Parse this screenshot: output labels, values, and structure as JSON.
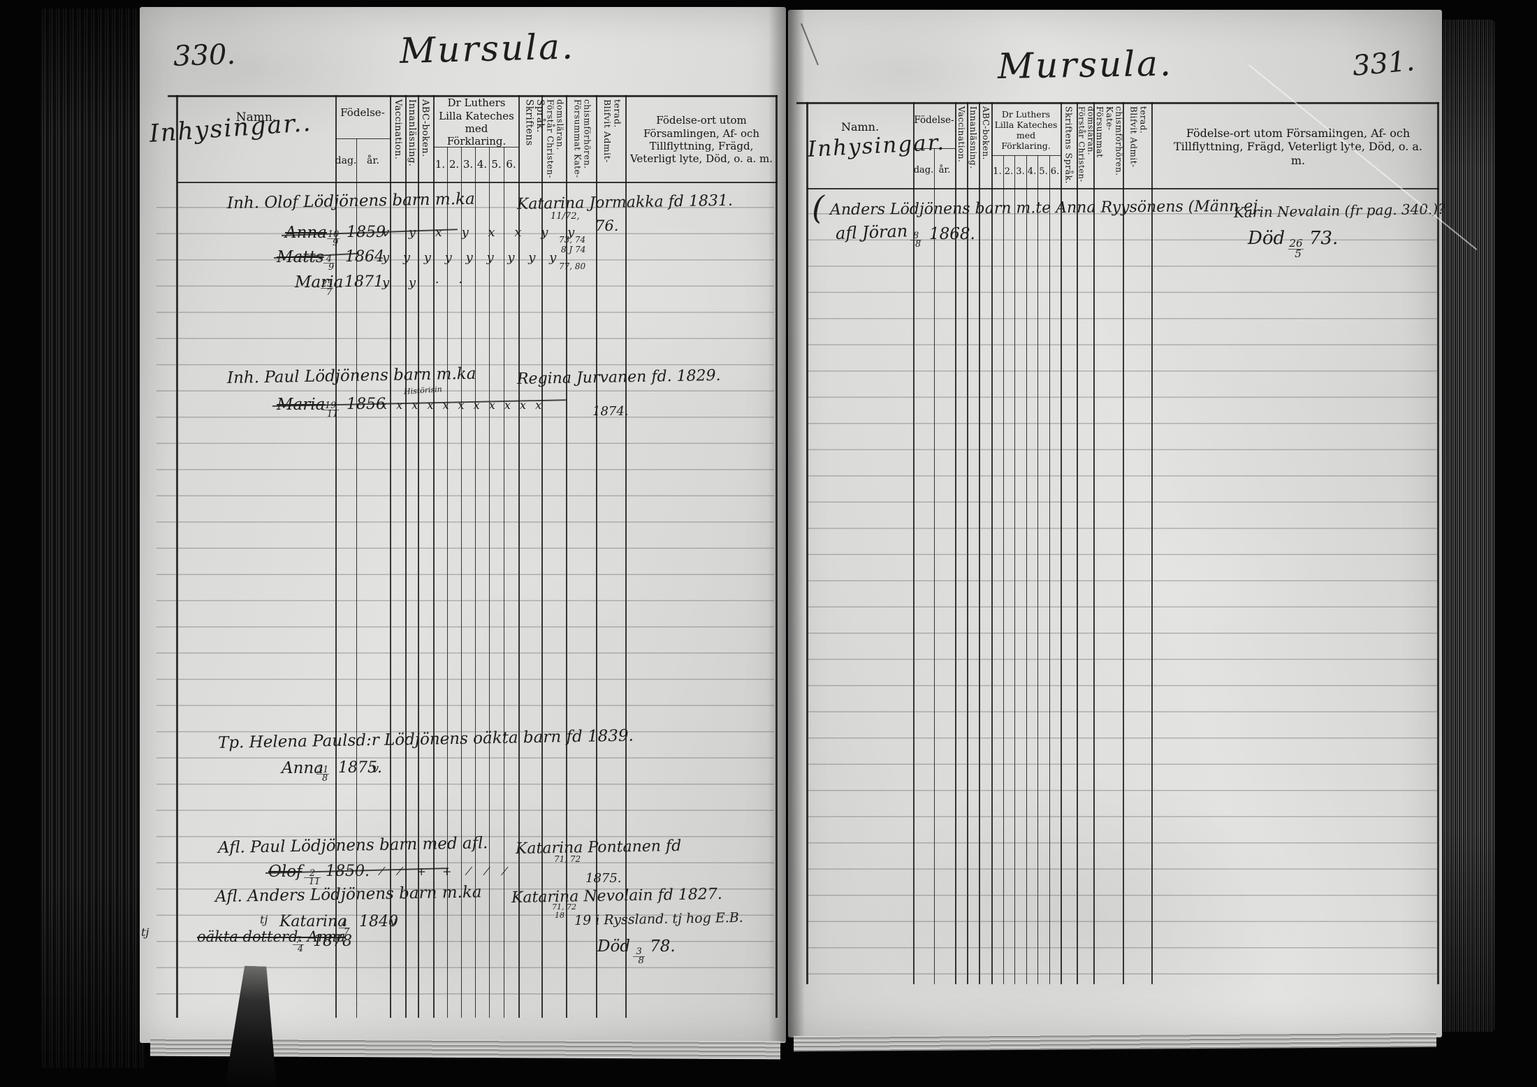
{
  "column_headers": {
    "name": "Namn.",
    "birth": "Födelse-",
    "birth_day": "dag.",
    "birth_year": "år.",
    "vaccination": "Vaccination.",
    "reading": "Innanläsning.",
    "abc_book": "ABC-boken.",
    "catechism": "Dr Luthers Lilla Kateches med Förklaring.",
    "catechism_cols": [
      "1.",
      "2.",
      "3.",
      "4.",
      "5.",
      "6."
    ],
    "scripture": "Skriftens Språk.",
    "understands": "Förstår Christen-domsläran.",
    "missed": "Försummat Kate-chismförhören.",
    "admitted": "Blifvit Admit-terad.",
    "remarks": "Födelse-ort utom Församlingen, Af- och Tillflyttning, Frägd, Veterligt lyte, Död, o. a. m."
  },
  "pages": {
    "left": {
      "page_number": "330.",
      "title": "Mursula.",
      "category": "Inhysingar..",
      "records": [
        {
          "intro": "Inh. Olof Lödjönens barn m.ka",
          "mother": "Katarina Jormakka fd 1831.",
          "note_top": "11/72,",
          "admitted": "76.",
          "rows": [
            {
              "name": "Anna",
              "day": "10/9",
              "year": "1859",
              "marks": "v y x y x x y y",
              "note1": "73, 74",
              "note2": "8 J 74"
            },
            {
              "name": "Matts",
              "day": "4/9",
              "year": "1864",
              "marks": "y y y y y y y y y",
              "note1": "77, 80"
            },
            {
              "name": "Maria",
              "day": "25/7",
              "year": "1871.",
              "marks": "y y · ·"
            }
          ]
        },
        {
          "intro": "Inh. Paul Lödjönens barn m.ka",
          "mother": "Regina Jurvanen fd. 1829.",
          "rows": [
            {
              "name": "Maria",
              "day": "19/11",
              "year": "1856",
              "marks": "x x x x x x x x x x x",
              "marks_note": "Histörisin",
              "note1": "1874."
            }
          ]
        },
        {
          "intro": "Tp. Helena Paulsd:r Lödjönens oäkta barn fd 1839.",
          "rows": [
            {
              "name": "Anna",
              "day": "31/8",
              "year": "1875.",
              "marks": "v"
            }
          ]
        },
        {
          "intro": "Afl. Paul Lödjönens barn med afl.",
          "mother": "Katarina Pontanen fd",
          "note_top": "71, 72",
          "note_bottom": "1875.",
          "rows": [
            {
              "name": "Olof",
              "day": "2/11",
              "year": "1850.",
              "marks": "⁄ ⁄ + + ⁄ ⁄ ⁄"
            }
          ]
        },
        {
          "intro": "Afl. Anders Lödjönens barn m.ka",
          "mother": "Katarina Nevolain fd 1827.",
          "note_top": "71, 72",
          "note_bottom": "18",
          "rows": [
            {
              "prefix": "tj",
              "name": "Katarina",
              "day": "4/7",
              "year": "1840",
              "marks": "v",
              "remark": "19 i Ryssland. tj hog E.B."
            },
            {
              "prefix": "tj",
              "name": "oäkta dotterd. Anna",
              "day": "7/4",
              "year": "1878",
              "remark_pre": "Död",
              "remark_frac": "3/8",
              "remark_post": "78."
            }
          ]
        }
      ]
    },
    "right": {
      "page_number": "331.",
      "title": "Mursula.",
      "category": "Inhysingar.",
      "records": [
        {
          "paren": "(",
          "intro": "Anders Lödjönens barn m.te Anna Ryysönens (Männ ej",
          "remark": "Karin Nevalain (fr pag. 340.)?",
          "rows": [
            {
              "name": "afl Jöran",
              "day": "8/8",
              "year": "1868.",
              "remark_pre": "Död",
              "remark_frac": "26/5",
              "remark_post": "73."
            }
          ]
        }
      ]
    }
  }
}
